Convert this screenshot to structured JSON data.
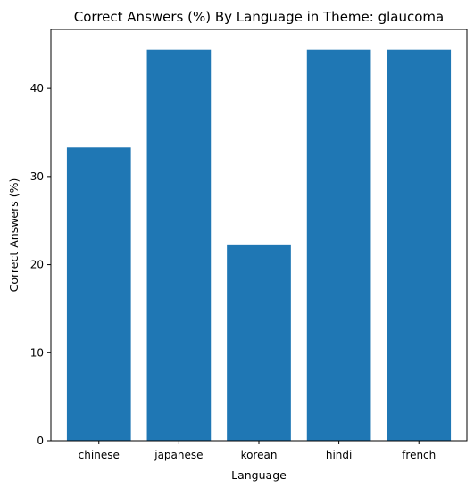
{
  "chart_data": {
    "type": "bar",
    "title": "Correct Answers (%) By Language in Theme: glaucoma",
    "xlabel": "Language",
    "ylabel": "Correct Answers (%)",
    "categories": [
      "chinese",
      "japanese",
      "korean",
      "hindi",
      "french"
    ],
    "values": [
      33.3,
      44.4,
      22.2,
      44.4,
      44.4
    ],
    "ylim": [
      0,
      46.7
    ],
    "yticks": [
      0,
      10,
      20,
      30,
      40
    ],
    "grid": false,
    "colors": {
      "bar": "#1f77b4"
    }
  }
}
